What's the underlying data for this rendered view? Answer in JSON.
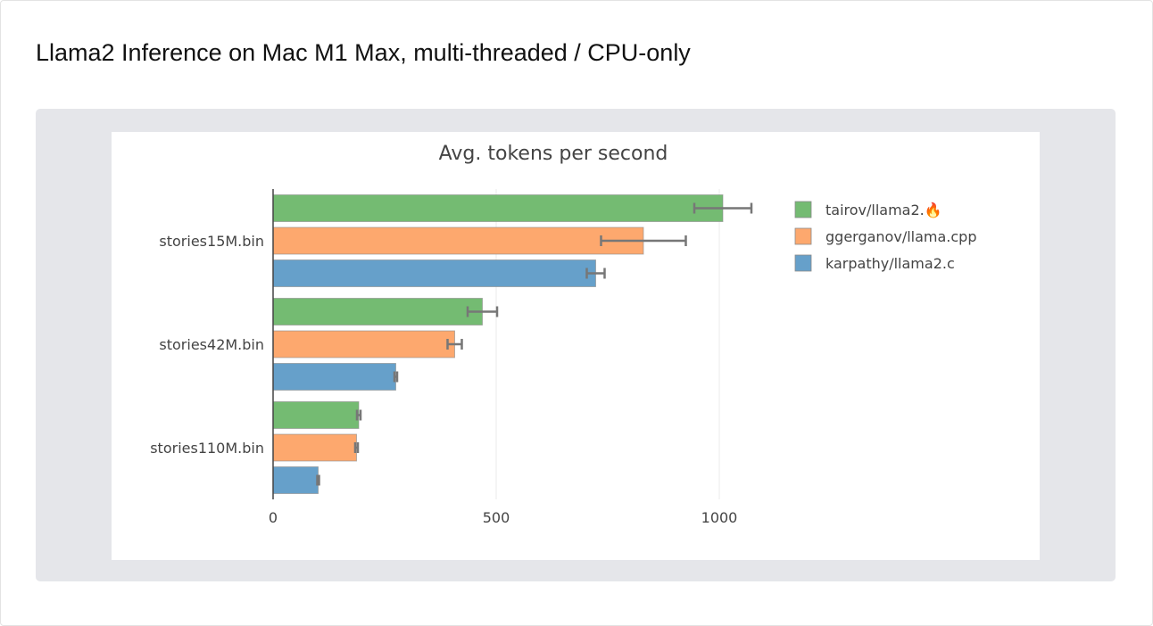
{
  "page_title": "Llama2 Inference on Mac M1 Max, multi-threaded / CPU-only",
  "chart_data": {
    "type": "bar",
    "orientation": "horizontal",
    "title": "Avg. tokens per second",
    "xlabel": "",
    "ylabel": "",
    "xlim": [
      0,
      1050
    ],
    "xticks": [
      0,
      500,
      1000
    ],
    "grid": true,
    "legend_position": "top-right",
    "categories": [
      "stories15M.bin",
      "stories42M.bin",
      "stories110M.bin"
    ],
    "series": [
      {
        "name": "tairov/llama2.🔥",
        "color": "#74bb72",
        "values": [
          1008,
          469,
          192
        ],
        "errors": [
          64,
          33,
          4
        ]
      },
      {
        "name": "ggerganov/llama.cpp",
        "color": "#fda86e",
        "values": [
          830,
          407,
          187
        ],
        "errors": [
          95,
          16,
          3
        ]
      },
      {
        "name": "karpathy/llama2.c",
        "color": "#66a0ca",
        "values": [
          723,
          275,
          101
        ],
        "errors": [
          20,
          3,
          2
        ]
      }
    ]
  }
}
